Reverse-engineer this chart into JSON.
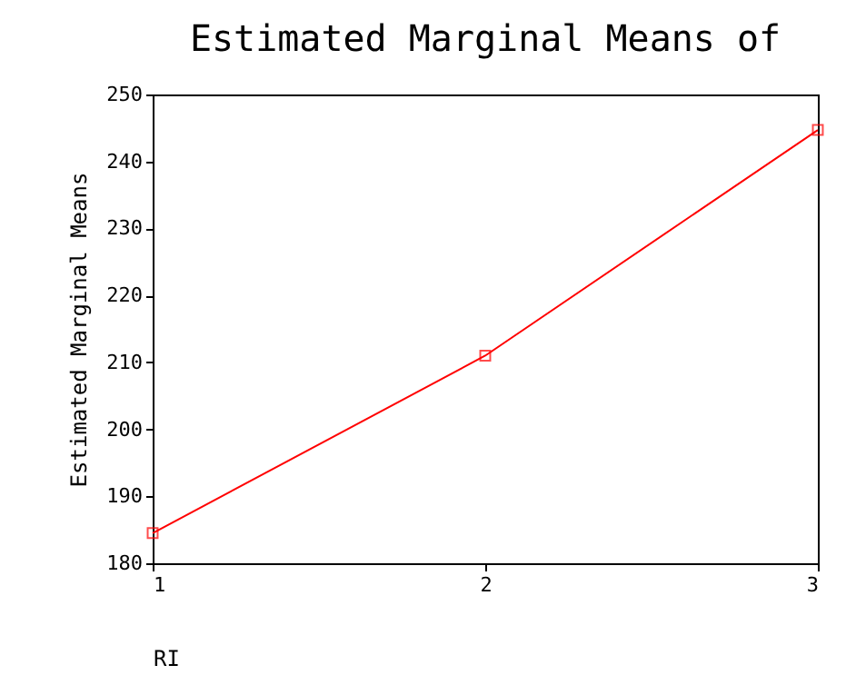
{
  "chart_data": {
    "type": "line",
    "title": "Estimated Marginal Means of",
    "xlabel": "RI",
    "ylabel": "Estimated Marginal Means",
    "x": [
      1,
      2,
      3
    ],
    "series": [
      {
        "color": "#ff0000",
        "values": [
          184.5,
          211.0,
          244.7
        ]
      }
    ],
    "xlim": [
      1,
      3
    ],
    "xticks": [
      1,
      2,
      3
    ],
    "ylim": [
      180,
      250
    ],
    "yticks": [
      180,
      190,
      200,
      210,
      220,
      230,
      240,
      250
    ],
    "marker": "square",
    "line_style": "solid",
    "grid": false
  }
}
